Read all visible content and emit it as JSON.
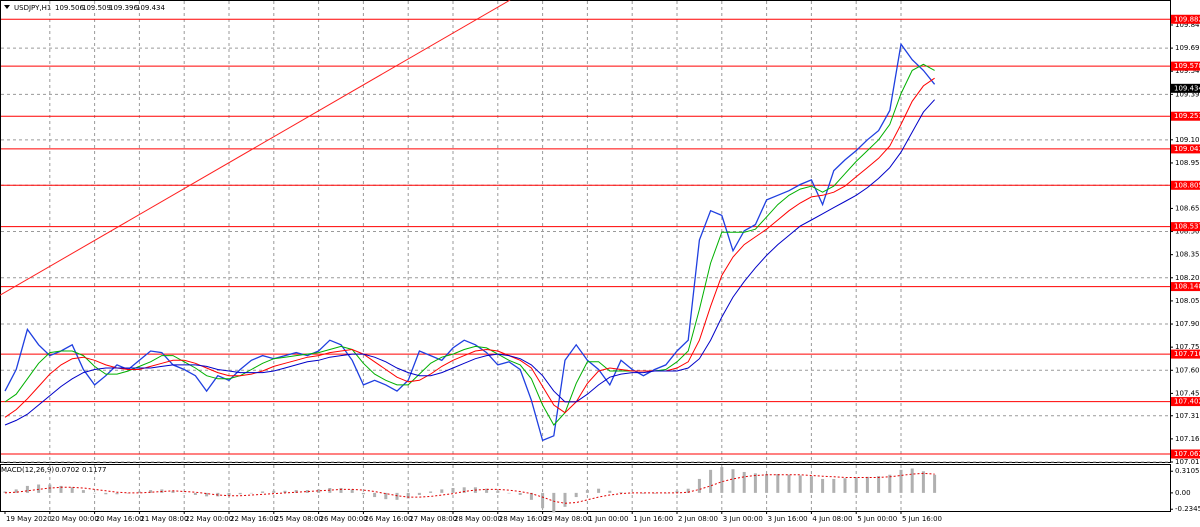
{
  "chart_data": [
    {
      "type": "line",
      "symbol": "USDJPY,H1",
      "quote": [
        109.506,
        109.509,
        109.396,
        109.434
      ],
      "current_price": 109.434,
      "categories": [
        "19 May 2020",
        null,
        null,
        null,
        "20 May 00:00",
        null,
        null,
        null,
        "20 May 16:00",
        null,
        null,
        null,
        "21 May 08:00",
        null,
        null,
        null,
        "22 May 00:00",
        null,
        null,
        null,
        "22 May 16:00",
        null,
        null,
        null,
        "25 May 08:00",
        null,
        null,
        null,
        "26 May 00:00",
        null,
        null,
        null,
        "26 May 16:00",
        null,
        null,
        null,
        "27 May 08:00",
        null,
        null,
        null,
        "28 May 00:00",
        null,
        null,
        null,
        "28 May 16:00",
        null,
        null,
        null,
        "29 May 08:00",
        null,
        null,
        null,
        "1 Jun 00:00",
        null,
        null,
        null,
        "1 Jun 16:00",
        null,
        null,
        null,
        "2 Jun 08:00",
        null,
        null,
        null,
        "3 Jun 00:00",
        null,
        null,
        null,
        "3 Jun 16:00",
        null,
        null,
        null,
        "4 Jun 08:00",
        null,
        null,
        null,
        "5 Jun 00:00",
        null,
        null,
        null,
        "5 Jun 16:00",
        null,
        null,
        null
      ],
      "series": [
        {
          "color": "#1f3fe0",
          "width": 1.3,
          "values": [
            107.47,
            107.61,
            107.87,
            107.77,
            107.7,
            107.73,
            107.77,
            107.61,
            107.51,
            107.57,
            107.64,
            107.61,
            107.67,
            107.73,
            107.72,
            107.64,
            107.61,
            107.57,
            107.47,
            107.57,
            107.54,
            107.61,
            107.67,
            107.7,
            107.68,
            107.7,
            107.72,
            107.7,
            107.73,
            107.8,
            107.77,
            107.67,
            107.51,
            107.54,
            107.51,
            107.47,
            107.54,
            107.73,
            107.7,
            107.67,
            107.75,
            107.8,
            107.77,
            107.72,
            107.64,
            107.66,
            107.61,
            107.41,
            107.15,
            107.18,
            107.67,
            107.77,
            107.67,
            107.61,
            107.51,
            107.67,
            107.61,
            107.57,
            107.61,
            107.64,
            107.73,
            107.8,
            108.45,
            108.64,
            108.61,
            108.38,
            108.51,
            108.55,
            108.71,
            108.74,
            108.77,
            108.81,
            108.84,
            108.68,
            108.9,
            108.97,
            109.03,
            109.1,
            109.16,
            109.29,
            109.72,
            109.62,
            109.55,
            109.46
          ]
        },
        {
          "color": "#00b000",
          "width": 1,
          "values": [
            107.4,
            107.45,
            107.55,
            107.65,
            107.72,
            107.73,
            107.73,
            107.7,
            107.63,
            107.58,
            107.58,
            107.6,
            107.63,
            107.66,
            107.7,
            107.7,
            107.66,
            107.62,
            107.57,
            107.55,
            107.55,
            107.57,
            107.61,
            107.65,
            107.68,
            107.69,
            107.7,
            107.71,
            107.72,
            107.74,
            107.76,
            107.74,
            107.65,
            107.58,
            107.54,
            107.51,
            107.51,
            107.58,
            107.65,
            107.69,
            107.71,
            107.74,
            107.76,
            107.75,
            107.71,
            107.67,
            107.64,
            107.55,
            107.38,
            107.25,
            107.33,
            107.52,
            107.66,
            107.66,
            107.6,
            107.6,
            107.6,
            107.6,
            107.6,
            107.61,
            107.66,
            107.73,
            108.0,
            108.3,
            108.5,
            108.5,
            108.5,
            108.52,
            108.6,
            108.68,
            108.74,
            108.78,
            108.8,
            108.76,
            108.8,
            108.88,
            108.96,
            109.03,
            109.1,
            109.2,
            109.4,
            109.55,
            109.59,
            109.55
          ]
        },
        {
          "color": "#ff0000",
          "width": 1,
          "values": [
            107.3,
            107.35,
            107.42,
            107.5,
            107.58,
            107.64,
            107.68,
            107.69,
            107.67,
            107.64,
            107.62,
            107.61,
            107.61,
            107.63,
            107.65,
            107.67,
            107.67,
            107.65,
            107.62,
            107.59,
            107.57,
            107.57,
            107.58,
            107.6,
            107.63,
            107.65,
            107.67,
            107.69,
            107.7,
            107.72,
            107.73,
            107.74,
            107.71,
            107.66,
            107.61,
            107.56,
            107.53,
            107.54,
            107.58,
            107.63,
            107.67,
            107.7,
            107.73,
            107.74,
            107.73,
            107.7,
            107.67,
            107.62,
            107.5,
            107.38,
            107.33,
            107.4,
            107.52,
            107.6,
            107.62,
            107.61,
            107.6,
            107.6,
            107.6,
            107.6,
            107.62,
            107.66,
            107.8,
            108.02,
            108.22,
            108.34,
            108.42,
            108.47,
            108.52,
            108.58,
            108.64,
            108.69,
            108.73,
            108.74,
            108.76,
            108.8,
            108.86,
            108.92,
            108.98,
            109.06,
            109.2,
            109.35,
            109.45,
            109.5
          ]
        },
        {
          "color": "#0000c8",
          "width": 1,
          "values": [
            107.25,
            107.28,
            107.32,
            107.38,
            107.44,
            107.5,
            107.55,
            107.59,
            107.61,
            107.62,
            107.62,
            107.62,
            107.62,
            107.62,
            107.63,
            107.64,
            107.64,
            107.64,
            107.63,
            107.61,
            107.6,
            107.59,
            107.59,
            107.59,
            107.6,
            107.62,
            107.64,
            107.66,
            107.67,
            107.69,
            107.7,
            107.71,
            107.71,
            107.69,
            107.66,
            107.62,
            107.59,
            107.57,
            107.57,
            107.59,
            107.62,
            107.65,
            107.68,
            107.7,
            107.71,
            107.7,
            107.68,
            107.64,
            107.57,
            107.47,
            107.4,
            107.4,
            107.45,
            107.51,
            107.56,
            107.58,
            107.59,
            107.59,
            107.6,
            107.6,
            107.6,
            107.62,
            107.68,
            107.8,
            107.95,
            108.08,
            108.18,
            108.27,
            108.35,
            108.42,
            108.48,
            108.54,
            108.58,
            108.62,
            108.66,
            108.7,
            108.74,
            108.79,
            108.85,
            108.92,
            109.02,
            109.15,
            109.28,
            109.36
          ]
        }
      ],
      "ylim": [
        107.01,
        110.007
      ],
      "yticks": [
        {
          "value": 109.845,
          "label": "109.845"
        },
        {
          "value": 109.695,
          "label": "109.695"
        },
        {
          "value": 109.545,
          "label": "109.545"
        },
        {
          "value": 109.395,
          "label": "109.395"
        },
        {
          "value": 109.25,
          "label": "109.250"
        },
        {
          "value": 109.1,
          "label": "109.100"
        },
        {
          "value": 108.95,
          "label": "108.950"
        },
        {
          "value": 108.805,
          "label": "108.805"
        },
        {
          "value": 108.655,
          "label": "108.655"
        },
        {
          "value": 108.505,
          "label": "108.505"
        },
        {
          "value": 108.355,
          "label": "108.355"
        },
        {
          "value": 108.205,
          "label": "108.205"
        },
        {
          "value": 108.055,
          "label": "108.055"
        },
        {
          "value": 107.905,
          "label": "107.905"
        },
        {
          "value": 107.755,
          "label": "107.755"
        },
        {
          "value": 107.605,
          "label": "107.605"
        },
        {
          "value": 107.455,
          "label": "107.455"
        },
        {
          "value": 107.31,
          "label": "107.310"
        },
        {
          "value": 107.16,
          "label": "107.160"
        },
        {
          "value": 107.01,
          "label": "107.010"
        }
      ],
      "levels": [
        {
          "value": 109.882,
          "label": "109.882"
        },
        {
          "value": 109.578,
          "label": "109.578"
        },
        {
          "value": 109.253,
          "label": "109.253"
        },
        {
          "value": 109.041,
          "label": "109.041"
        },
        {
          "value": 108.805,
          "label": "108.805"
        },
        {
          "value": 108.537,
          "label": "108.537"
        },
        {
          "value": 108.148,
          "label": "108.148"
        },
        {
          "value": 107.71,
          "label": "107.710"
        },
        {
          "value": 107.402,
          "label": "107.402"
        },
        {
          "value": 107.062,
          "label": "107.062"
        }
      ],
      "level_color": "#ff0000",
      "trendline": {
        "x": [
          -0.45,
          45.1
        ],
        "y": [
          108.092,
          110.007
        ],
        "color": "#ff2020"
      },
      "grid": true
    },
    {
      "type": "macd",
      "name": "MACD(12,26,9)",
      "readout": [
        0.0702,
        0.1177
      ],
      "histogram": {
        "color": "#b0b0b0",
        "values": [
          0.02,
          0.05,
          0.1,
          0.12,
          0.12,
          0.1,
          0.08,
          0.04,
          0.0,
          -0.02,
          -0.02,
          0.0,
          0.02,
          0.04,
          0.05,
          0.03,
          0.0,
          -0.03,
          -0.05,
          -0.05,
          -0.04,
          -0.02,
          0.0,
          0.02,
          0.03,
          0.03,
          0.04,
          0.04,
          0.05,
          0.07,
          0.07,
          0.05,
          -0.02,
          -0.06,
          -0.09,
          -0.1,
          -0.08,
          -0.03,
          0.02,
          0.05,
          0.07,
          0.08,
          0.08,
          0.06,
          0.03,
          0.0,
          -0.03,
          -0.1,
          -0.22,
          -0.28,
          -0.2,
          -0.06,
          0.04,
          0.06,
          0.03,
          0.01,
          0.0,
          -0.01,
          -0.01,
          0.0,
          0.03,
          0.06,
          0.2,
          0.33,
          0.37,
          0.34,
          0.3,
          0.28,
          0.27,
          0.27,
          0.26,
          0.25,
          0.24,
          0.2,
          0.2,
          0.21,
          0.22,
          0.23,
          0.24,
          0.26,
          0.33,
          0.35,
          0.31,
          0.26
        ]
      },
      "signal": {
        "color": "#e00000",
        "values": [
          0.0,
          0.01,
          0.03,
          0.05,
          0.07,
          0.08,
          0.08,
          0.07,
          0.05,
          0.03,
          0.01,
          0.0,
          0.0,
          0.01,
          0.02,
          0.03,
          0.02,
          0.01,
          -0.01,
          -0.03,
          -0.04,
          -0.04,
          -0.03,
          -0.02,
          -0.01,
          0.0,
          0.01,
          0.02,
          0.03,
          0.04,
          0.05,
          0.05,
          0.04,
          0.02,
          -0.01,
          -0.04,
          -0.06,
          -0.06,
          -0.05,
          -0.03,
          -0.01,
          0.02,
          0.04,
          0.05,
          0.05,
          0.04,
          0.02,
          -0.01,
          -0.06,
          -0.12,
          -0.15,
          -0.14,
          -0.1,
          -0.06,
          -0.03,
          -0.01,
          0.0,
          0.0,
          0.0,
          0.0,
          0.0,
          0.01,
          0.05,
          0.1,
          0.16,
          0.2,
          0.23,
          0.25,
          0.26,
          0.26,
          0.26,
          0.26,
          0.25,
          0.24,
          0.23,
          0.22,
          0.22,
          0.22,
          0.22,
          0.23,
          0.25,
          0.27,
          0.28,
          0.27
        ]
      },
      "ylim": [
        -0.26,
        0.4
      ],
      "yticks": [
        0.3105,
        {
          "value": 0,
          "label": "0.00"
        },
        -0.2345
      ]
    }
  ]
}
